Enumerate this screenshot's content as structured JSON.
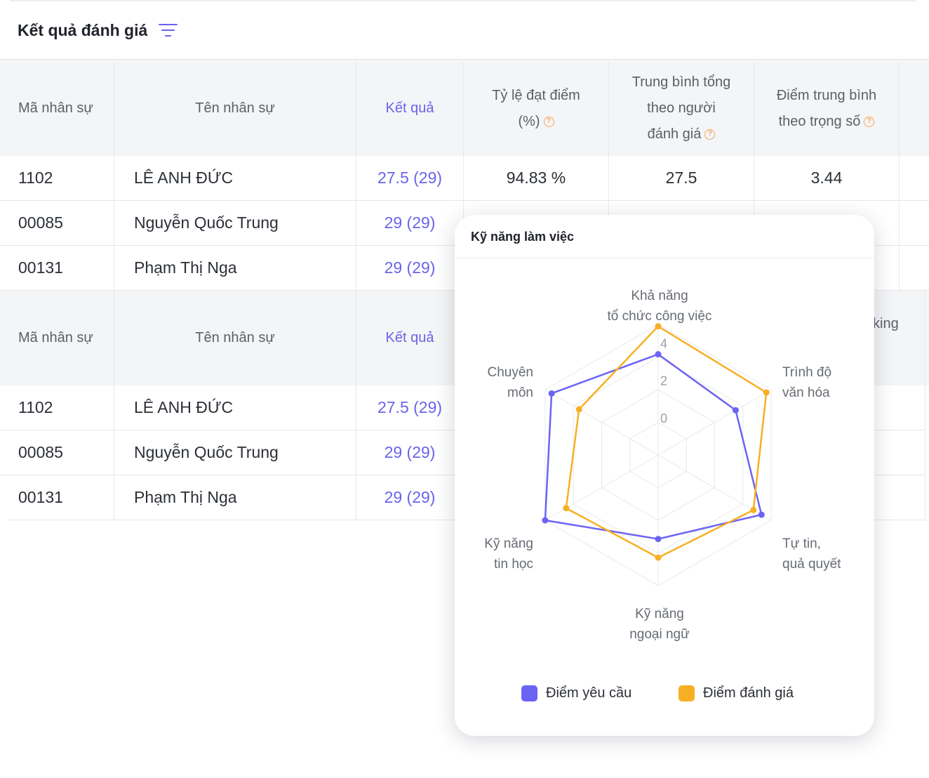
{
  "page": {
    "title": "Kết quả đánh giá"
  },
  "table": {
    "headers": {
      "employee_id": "Mã nhân sự",
      "employee_name": "Tên nhân sự",
      "result": "Kết quả",
      "rate_line1": "Tỷ lệ đạt điểm",
      "rate_line2": "(%)",
      "avg_line1": "Trung bình tổng",
      "avg_line2": "theo người",
      "avg_line3": "đánh giá",
      "weighted_line1": "Điểm trung bình",
      "weighted_line2": "theo trọng số",
      "partial": "king"
    },
    "rows": [
      {
        "id": "1102",
        "name": "LÊ ANH ĐỨC",
        "result": "27.5 (29)",
        "rate": "94.83 %",
        "avg": "27.5",
        "weighted": "3.44"
      },
      {
        "id": "00085",
        "name": "Nguyễn Quốc Trung",
        "result": "29 (29)"
      },
      {
        "id": "00131",
        "name": "Phạm Thị Nga",
        "result": "29 (29)"
      }
    ]
  },
  "popup": {
    "title": "Kỹ năng làm việc",
    "legend": [
      {
        "label": "Điểm yêu cầu",
        "color": "#6c63f5"
      },
      {
        "label": "Điểm đánh giá",
        "color": "#f7b023"
      }
    ]
  },
  "chart_data": {
    "type": "radar",
    "axes": [
      {
        "label_lines": [
          "Khả năng",
          "tổ chức công việc"
        ]
      },
      {
        "label_lines": [
          "Trình độ",
          "văn hóa"
        ]
      },
      {
        "label_lines": [
          "Tự tin,",
          "quả quyết"
        ]
      },
      {
        "label_lines": [
          "Kỹ năng",
          "ngoại ngữ"
        ]
      },
      {
        "label_lines": [
          "Kỹ năng",
          "tin học"
        ]
      },
      {
        "label_lines": [
          "Chuyên",
          "môn"
        ]
      }
    ],
    "ticks": [
      "0",
      "2",
      "4"
    ],
    "rmin": -2,
    "rmax": 5,
    "series": [
      {
        "name": "Điểm yêu cầu",
        "color": "#6c63f5",
        "values": [
          3.4,
          2.8,
          4.4,
          2.5,
          5.0,
          4.6
        ]
      },
      {
        "name": "Điểm đánh giá",
        "color": "#f7b023",
        "values": [
          4.9,
          4.7,
          3.9,
          3.5,
          3.7,
          2.9
        ]
      }
    ]
  }
}
